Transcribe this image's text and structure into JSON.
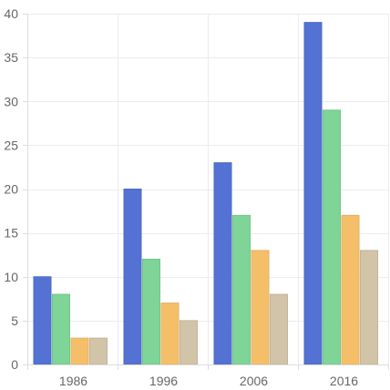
{
  "chart_data": {
    "type": "bar",
    "categories": [
      "1986",
      "1996",
      "2006",
      "2016"
    ],
    "series": [
      {
        "values": [
          10,
          20,
          23,
          39
        ],
        "color": "#5472d3"
      },
      {
        "values": [
          8,
          12,
          17,
          29
        ],
        "color": "#7fd497"
      },
      {
        "values": [
          3,
          7,
          13,
          17
        ],
        "color": "#f5bf6a"
      },
      {
        "values": [
          3,
          5,
          8,
          13
        ],
        "color": "#d2c4a8"
      }
    ],
    "ylim": [
      0,
      40
    ],
    "y_ticks": [
      0,
      5,
      10,
      15,
      20,
      25,
      30,
      35,
      40
    ],
    "grid": true,
    "legend": "none",
    "title": "",
    "xlabel": "",
    "ylabel": ""
  }
}
